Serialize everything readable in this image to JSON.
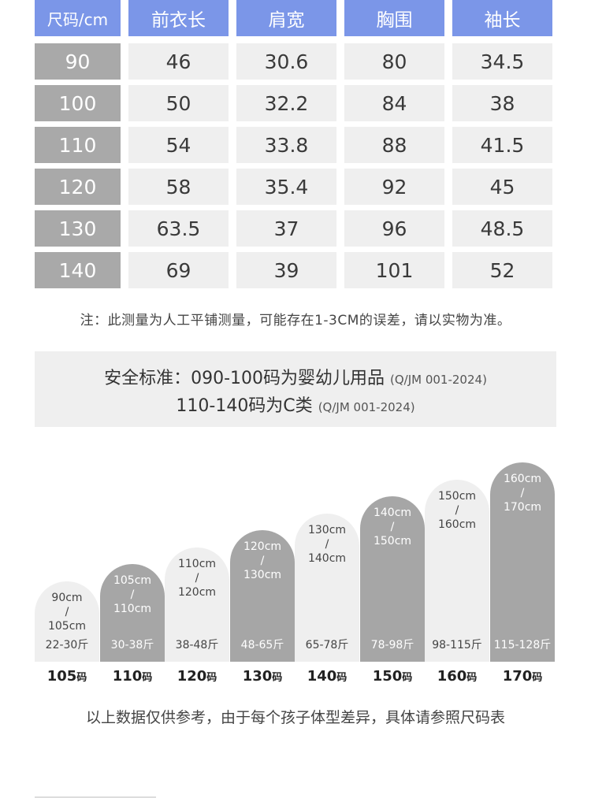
{
  "size_table": {
    "headers": [
      "尺码/cm",
      "前衣长",
      "肩宽",
      "胸围",
      "袖长"
    ],
    "rows": [
      [
        "90",
        "46",
        "30.6",
        "80",
        "34.5"
      ],
      [
        "100",
        "50",
        "32.2",
        "84",
        "38"
      ],
      [
        "110",
        "54",
        "33.8",
        "88",
        "41.5"
      ],
      [
        "120",
        "58",
        "35.4",
        "92",
        "45"
      ],
      [
        "130",
        "63.5",
        "37",
        "96",
        "48.5"
      ],
      [
        "140",
        "69",
        "39",
        "101",
        "52"
      ]
    ]
  },
  "note": "注：此测量为人工平铺测量，可能存在1-3CM的误差，请以实物为准。",
  "safety_standard": {
    "line1_main": "安全标准：090-100码为婴幼儿用品",
    "line1_code": "(Q/JM 001-2024)",
    "line2_main": "110-140码为C类",
    "line2_code": "(Q/JM 001-2024)"
  },
  "size_chart": {
    "items": [
      {
        "height_top": "90cm",
        "height_sep": "/",
        "height_bottom": "105cm",
        "weight": "22-30斤",
        "size": "105",
        "size_suffix": "码",
        "style": "light"
      },
      {
        "height_top": "105cm",
        "height_sep": "/",
        "height_bottom": "110cm",
        "weight": "30-38斤",
        "size": "110",
        "size_suffix": "码",
        "style": "dark"
      },
      {
        "height_top": "110cm",
        "height_sep": "/",
        "height_bottom": "120cm",
        "weight": "38-48斤",
        "size": "120",
        "size_suffix": "码",
        "style": "light"
      },
      {
        "height_top": "120cm",
        "height_sep": "/",
        "height_bottom": "130cm",
        "weight": "48-65斤",
        "size": "130",
        "size_suffix": "码",
        "style": "dark"
      },
      {
        "height_top": "130cm",
        "height_sep": "/",
        "height_bottom": "140cm",
        "weight": "65-78斤",
        "size": "140",
        "size_suffix": "码",
        "style": "light"
      },
      {
        "height_top": "140cm",
        "height_sep": "/",
        "height_bottom": "150cm",
        "weight": "78-98斤",
        "size": "150",
        "size_suffix": "码",
        "style": "dark"
      },
      {
        "height_top": "150cm",
        "height_sep": "/",
        "height_bottom": "160cm",
        "weight": "98-115斤",
        "size": "160",
        "size_suffix": "码",
        "style": "light"
      },
      {
        "height_top": "160cm",
        "height_sep": "/",
        "height_bottom": "170cm",
        "weight": "115-128斤",
        "size": "170",
        "size_suffix": "码",
        "style": "dark"
      }
    ]
  },
  "footer_note": "以上数据仅供参考，由于每个孩子体型差异，具体请参照尺码表",
  "colors": {
    "header_blue": "#7b96e8",
    "size_col_gray": "#a9a9a9",
    "cell_light": "#efefef",
    "arch_dark": "#a6a6a6"
  }
}
